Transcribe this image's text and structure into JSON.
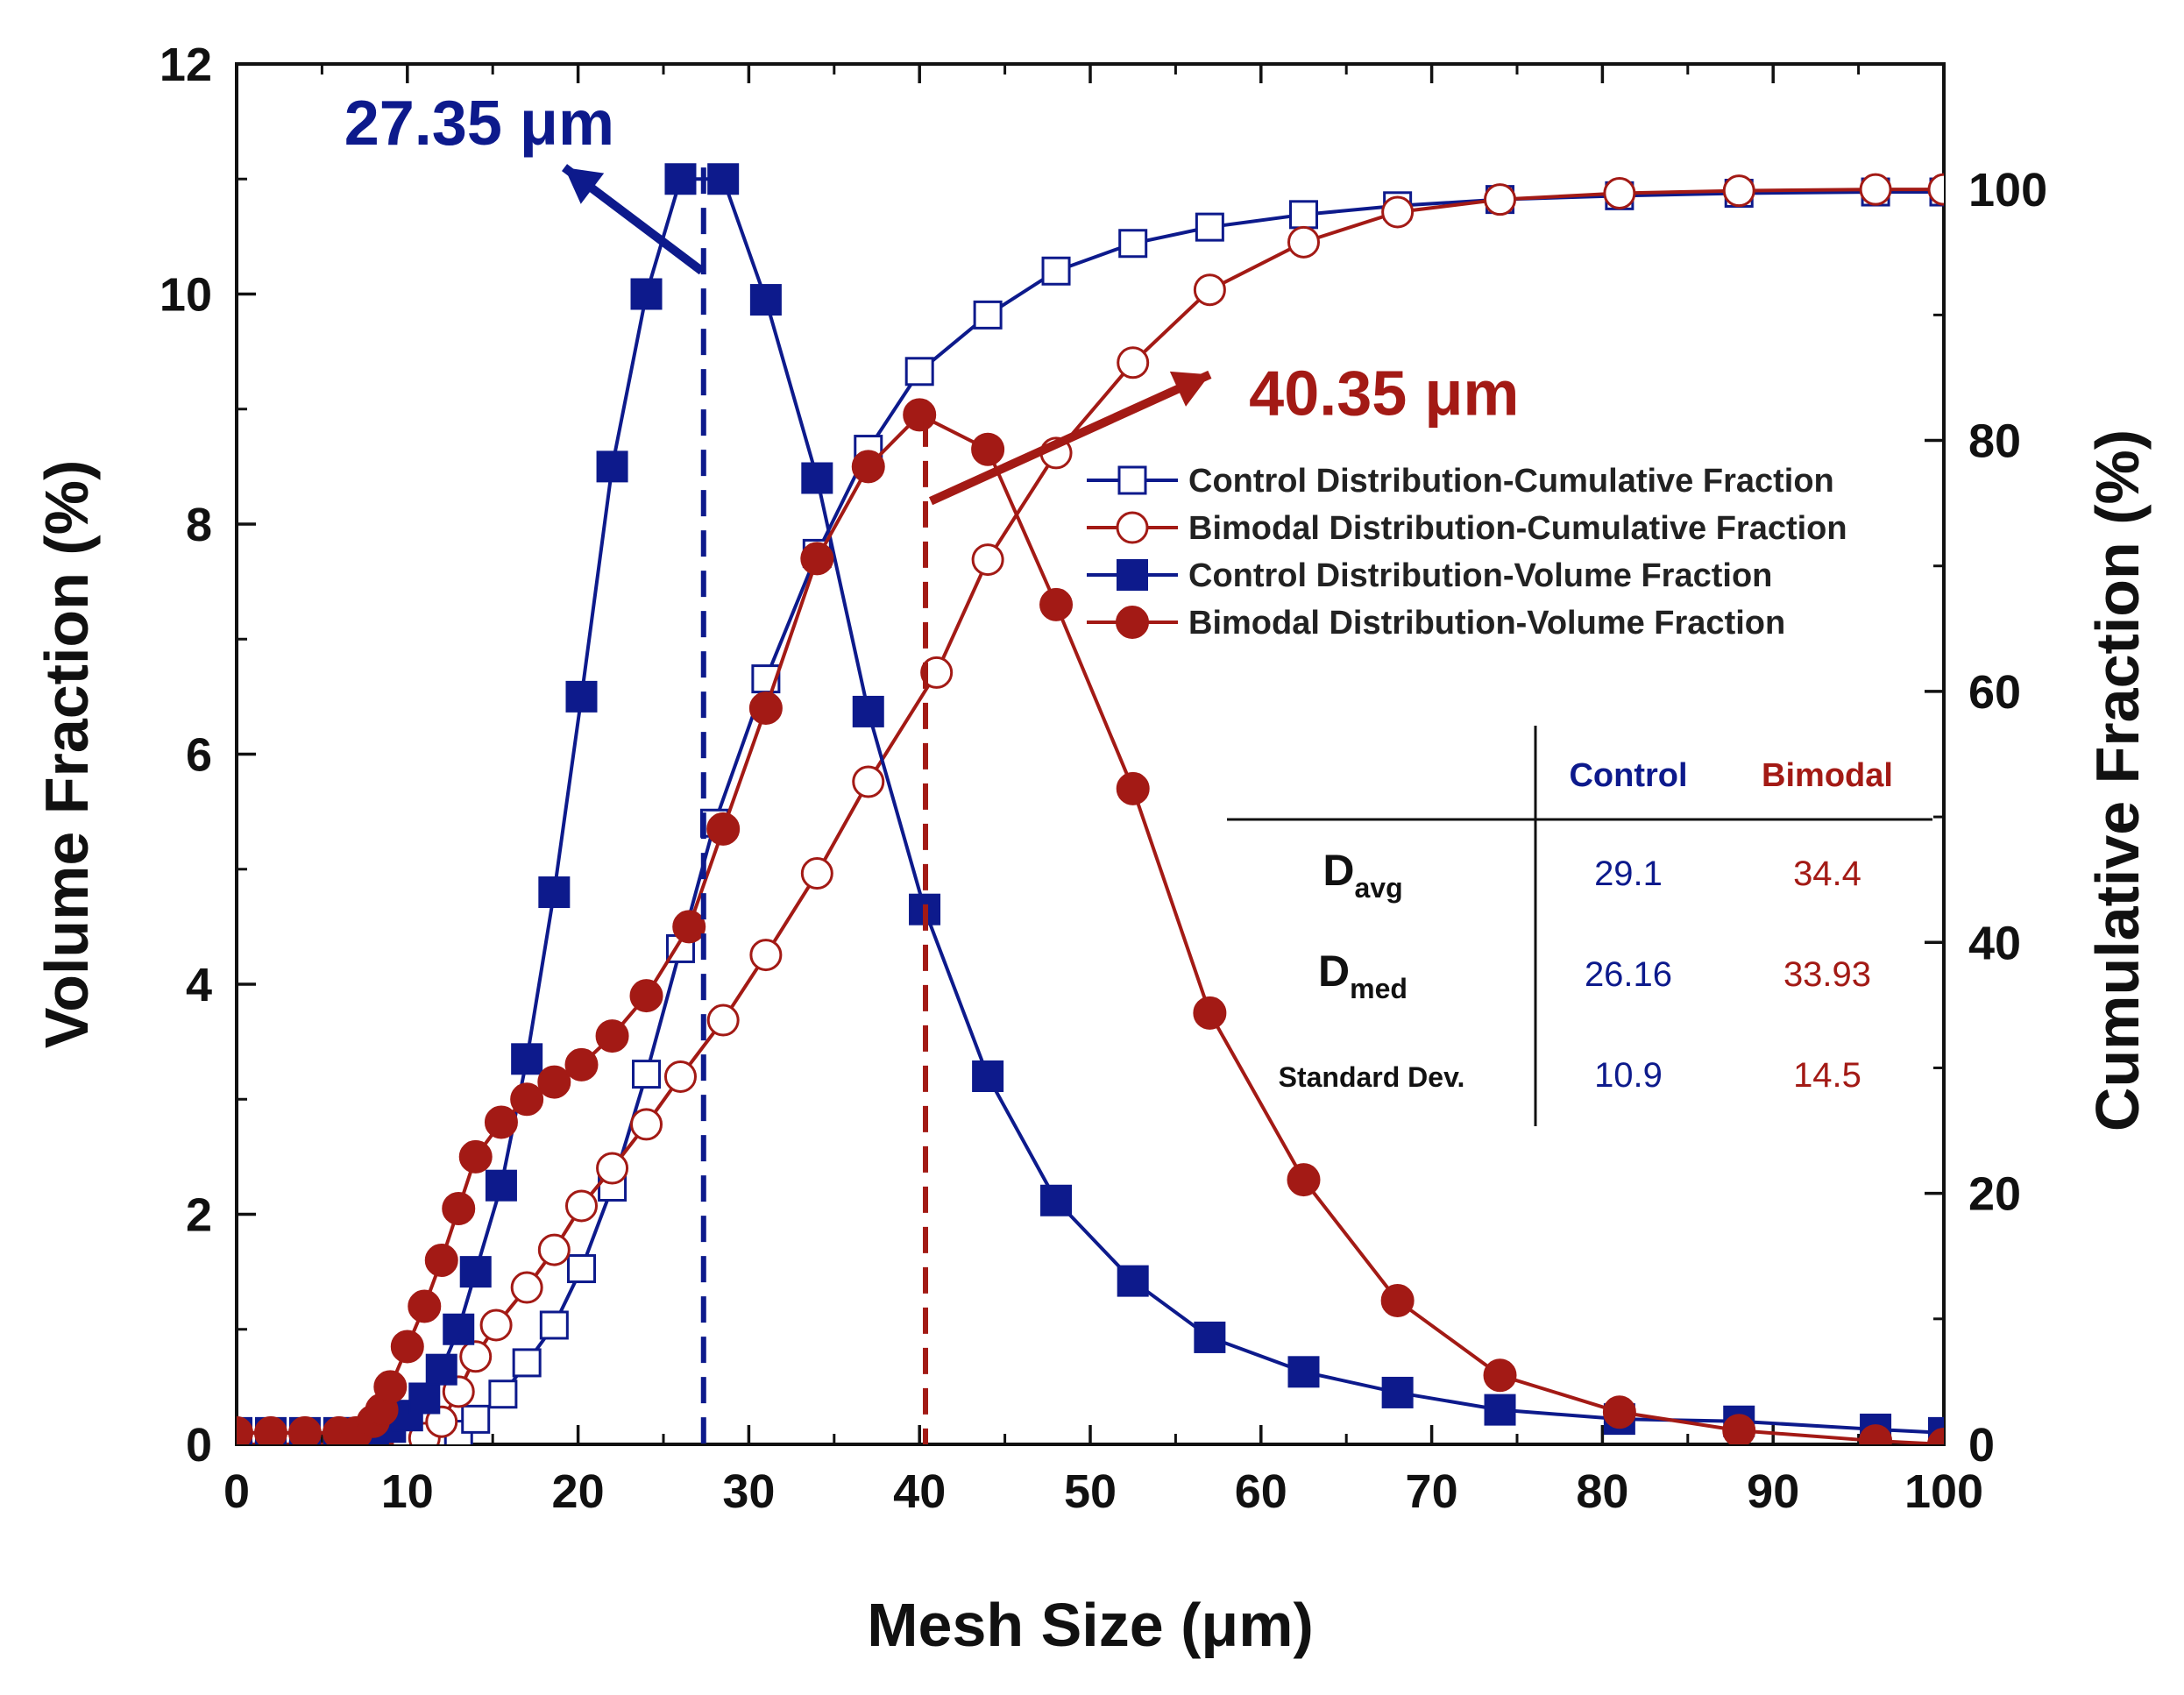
{
  "colors": {
    "control": "#0d1a8c",
    "bimodal": "#a31a15",
    "axis": "#111111"
  },
  "chart_data": {
    "type": "line",
    "xlabel": "Mesh Size (μm)",
    "ylabel": "Volume Fraction (%)",
    "y2label": "Cumulative Fraction (%)",
    "xlim": [
      0,
      100
    ],
    "ylim": [
      0,
      12
    ],
    "y2lim": [
      0,
      110
    ],
    "xticks": [
      "0",
      "10",
      "20",
      "30",
      "40",
      "50",
      "60",
      "70",
      "80",
      "90",
      "100"
    ],
    "yticks": [
      "0",
      "2",
      "4",
      "6",
      "8",
      "10",
      "12"
    ],
    "y2ticks": [
      "0",
      "20",
      "40",
      "60",
      "80",
      "100"
    ],
    "series": [
      {
        "name": "Control Distribution-Cumulative Fraction",
        "axis": "right",
        "marker": "square-open",
        "color": "control",
        "x": [
          0,
          2,
          4,
          6,
          8,
          10,
          12,
          13,
          14,
          15.6,
          17,
          18.6,
          20.2,
          22,
          24,
          26,
          28,
          31,
          34,
          37,
          40,
          44,
          48,
          52.5,
          57,
          62.5,
          68,
          74,
          81,
          88,
          96,
          100
        ],
        "y": [
          0,
          0,
          0,
          0,
          0,
          0,
          0,
          0.8,
          2,
          4,
          6.5,
          9.5,
          14,
          20.5,
          29.5,
          39.5,
          49.5,
          61,
          71,
          79.3,
          85.5,
          90,
          93.5,
          95.7,
          97,
          98,
          98.7,
          99.2,
          99.5,
          99.7,
          99.8,
          99.8
        ]
      },
      {
        "name": "Bimodal Distribution-Cumulative Fraction",
        "axis": "right",
        "marker": "circle-open",
        "color": "bimodal",
        "x": [
          0,
          2,
          4,
          6,
          8,
          10,
          11,
          12,
          13,
          14,
          15.2,
          17,
          18.6,
          20.2,
          22,
          24,
          26,
          28.5,
          31,
          34,
          37,
          41,
          44,
          48,
          52.5,
          57,
          62.5,
          68,
          74,
          81,
          88,
          96,
          100
        ],
        "y": [
          0,
          0,
          0,
          0,
          0,
          0,
          0.5,
          1.8,
          4.2,
          7,
          9.5,
          12.5,
          15.5,
          19,
          22,
          25.5,
          29.3,
          33.8,
          39,
          45.5,
          52.8,
          61.5,
          70.5,
          79,
          86.2,
          92,
          95.8,
          98.2,
          99.2,
          99.7,
          99.9,
          100,
          100
        ]
      },
      {
        "name": "Control Distribution-Volume Fraction",
        "axis": "left",
        "marker": "square-filled",
        "color": "control",
        "x": [
          0,
          2,
          4,
          6,
          7,
          8,
          9,
          10,
          11,
          12,
          13,
          14,
          15.5,
          17,
          18.6,
          20.2,
          22,
          24,
          26,
          28.5,
          31,
          34,
          37,
          40.3,
          44,
          48,
          52.5,
          57,
          62.5,
          68,
          74,
          81,
          88,
          96,
          100
        ],
        "y": [
          0.1,
          0.1,
          0.1,
          0.1,
          0.1,
          0.1,
          0.15,
          0.25,
          0.4,
          0.65,
          1,
          1.5,
          2.25,
          3.35,
          4.8,
          6.5,
          8.5,
          10,
          11,
          11,
          9.95,
          8.4,
          6.37,
          4.65,
          3.2,
          2.12,
          1.42,
          0.93,
          0.63,
          0.45,
          0.3,
          0.22,
          0.2,
          0.13,
          0.1
        ]
      },
      {
        "name": "Bimodal Distribution-Volume Fraction",
        "axis": "left",
        "marker": "circle-filled",
        "color": "bimodal",
        "x": [
          0,
          2,
          4,
          6,
          7,
          8,
          8.5,
          9,
          10,
          11,
          12,
          13,
          14,
          15.5,
          17,
          18.6,
          20.2,
          22,
          24,
          26.5,
          28.5,
          31,
          34,
          37,
          40,
          44,
          48,
          52.5,
          57,
          62.5,
          68,
          74,
          81,
          88,
          96,
          100
        ],
        "y": [
          0.1,
          0.1,
          0.1,
          0.1,
          0.1,
          0.2,
          0.3,
          0.5,
          0.85,
          1.2,
          1.6,
          2.05,
          2.5,
          2.8,
          3,
          3.15,
          3.3,
          3.55,
          3.9,
          4.5,
          5.35,
          6.4,
          7.7,
          8.5,
          8.95,
          8.65,
          7.3,
          5.7,
          3.75,
          2.3,
          1.25,
          0.6,
          0.28,
          0.12,
          0.03,
          0
        ]
      }
    ],
    "annotations": [
      {
        "label": "27.35 μm",
        "x": 27.35,
        "color": "control"
      },
      {
        "label": "40.35 μm",
        "x": 40.35,
        "color": "bimodal"
      }
    ],
    "stats_table": {
      "headers": [
        "Control",
        "Bimodal"
      ],
      "rows": [
        {
          "label": "D",
          "sub": "avg",
          "control": "29.1",
          "bimodal": "34.4"
        },
        {
          "label": "D",
          "sub": "med",
          "control": "26.16",
          "bimodal": "33.93"
        },
        {
          "label": "Standard Dev.",
          "sub": "",
          "control": "10.9",
          "bimodal": "14.5"
        }
      ]
    },
    "legend_position": "upper-right"
  }
}
